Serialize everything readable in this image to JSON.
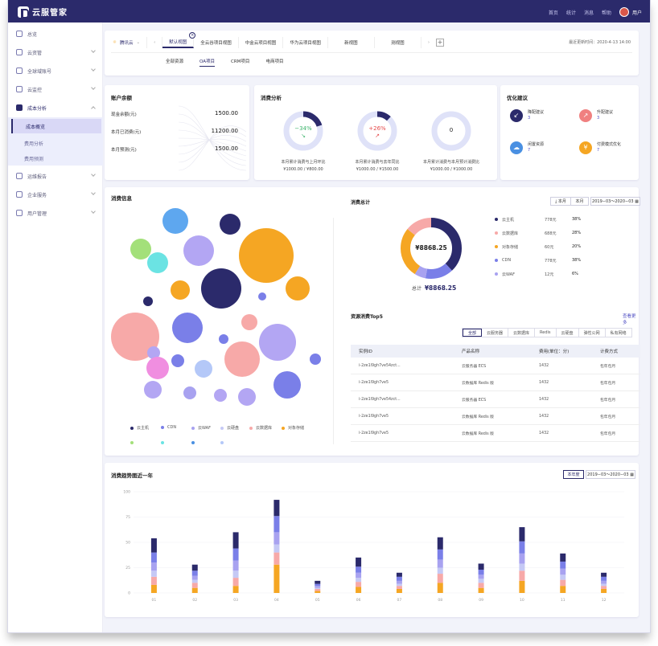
{
  "app": {
    "title": "云服管家",
    "nav": [
      "首页",
      "统计",
      "消息",
      "帮助"
    ],
    "user": "用户"
  },
  "sidebar": {
    "items": [
      {
        "label": "总览"
      },
      {
        "label": "云资管"
      },
      {
        "label": "全球域账号"
      },
      {
        "label": "云监控"
      },
      {
        "label": "成本分析"
      },
      {
        "label": "运维报告"
      },
      {
        "label": "企业服务"
      },
      {
        "label": "用户管理"
      }
    ],
    "sub": [
      "成本概览",
      "费用分析",
      "费用预测"
    ]
  },
  "tabs": {
    "cloud": "腾讯云",
    "items": [
      "默认视图",
      "全云谷项目视图",
      "中金云项目视图",
      "华为云项目视图",
      "新视图",
      "测视图"
    ],
    "updated": "最近更新时间：",
    "updated_value": "2020-4-13 14:00",
    "sub": [
      "全部资源",
      "OA项目",
      "CRM项目",
      "电商项目"
    ]
  },
  "balance": {
    "title": "账户余额",
    "rows": [
      {
        "label": "现金余额(元)",
        "value": "1500.00"
      },
      {
        "label": "本月已消费(元)",
        "value": "11200.00"
      },
      {
        "label": "本月预测(元)",
        "value": "1500.00"
      }
    ]
  },
  "consumption": {
    "title": "消费分析",
    "donuts": [
      {
        "pct": "−34%",
        "arrow": "↘",
        "cap": "本月累计消费与上月环比",
        "vals": "¥1000.00  /  ¥800.00",
        "fill": 0.2
      },
      {
        "pct": "+26%",
        "arrow": "↗",
        "cap": "本月累计消费与去年同比",
        "vals": "¥1000.00  /  ¥1500.00",
        "fill": 0.12
      },
      {
        "pct": "0",
        "arrow": "",
        "cap": "本月累计消费与本月预计消费比",
        "vals": "¥1000.00  /  ¥1000.00",
        "fill": 0
      }
    ]
  },
  "optimize": {
    "title": "优化建议",
    "items": [
      {
        "label": "降配建议",
        "count": "3",
        "color": "#2b2a6b",
        "icon": "arrow-down-left-icon"
      },
      {
        "label": "升配建议",
        "count": "3",
        "color": "#f08080",
        "icon": "arrow-up-right-icon"
      },
      {
        "label": "闲置资源",
        "count": "7",
        "color": "#4a90e2",
        "icon": "cloud-icon"
      },
      {
        "label": "付费模式优化",
        "count": "7",
        "color": "#f5a623",
        "icon": "yen-icon"
      }
    ]
  },
  "info": {
    "title": "消费信息",
    "legend": [
      "云主机",
      "CDN",
      "云WAF",
      "云硬盘",
      "云数据库",
      "对象存储"
    ],
    "legend_colors": [
      "#2b2a6b",
      "#7a7fe8",
      "#a8a2f0",
      "#c5c9f5",
      "#f7a9a8",
      "#f5a623"
    ],
    "legend_colors2": [
      "#a3e07a",
      "#6be3e3",
      "#4a90e2",
      "#b4c8f8"
    ]
  },
  "summary": {
    "title": "消费总计",
    "btn_month": "本月",
    "btn_export": "本月",
    "range": "2019−03～2020−03",
    "center": "¥8868.25",
    "total_label": "总计",
    "total_value": "¥8868.25",
    "rows": [
      {
        "name": "云主机",
        "amt": "778元",
        "pct": "38%",
        "color": "#2b2a6b"
      },
      {
        "name": "云数据库",
        "amt": "688元",
        "pct": "28%",
        "color": "#f7a9a8"
      },
      {
        "name": "对象存储",
        "amt": "60元",
        "pct": "20%",
        "color": "#f5a623"
      },
      {
        "name": "CDN",
        "amt": "778元",
        "pct": "38%",
        "color": "#7a7fe8"
      },
      {
        "name": "云WAF",
        "amt": "12元",
        "pct": "6%",
        "color": "#a8a2f0"
      }
    ]
  },
  "top5": {
    "title": "资源消费Top5",
    "more": "查看更多",
    "filters": [
      "全部",
      "云服务器",
      "云数据库",
      "Redis",
      "云硬盘",
      "弹性公网",
      "私有网络"
    ],
    "headers": [
      "实例ID",
      "产品名称",
      "费用(单位：分)",
      "计费方式"
    ],
    "rows": [
      [
        "i-2ze1l9gh7ve54zct...",
        "云服务器 ECS",
        "1432",
        "包年包月"
      ],
      [
        "i-2ze1l9gh7ve5",
        "云数据库 Redis 版",
        "1432",
        "包年包月"
      ],
      [
        "i-2ze1l9gh7ve54zct...",
        "云服务器 ECS",
        "1432",
        "包年包月"
      ],
      [
        "i-2ze1l9gh7ve5",
        "云数据库 Redis 版",
        "1432",
        "包年包月"
      ],
      [
        "i-2ze1l9gh7ve5",
        "云数据库 Redis 版",
        "1432",
        "包年包月"
      ]
    ]
  },
  "trend": {
    "title": "消费趋势图近一年",
    "btn": "本年度",
    "range": "2019−03～2020−03"
  },
  "chart_data": {
    "type": "bar",
    "title": "消费趋势图近一年",
    "ylim": [
      0,
      100
    ],
    "yticks": [
      "0",
      "25",
      "50",
      "75",
      "100"
    ],
    "categories": [
      "01",
      "02",
      "03",
      "04",
      "05",
      "06",
      "07",
      "08",
      "09",
      "10",
      "11",
      "12"
    ],
    "series": [
      {
        "color": "#f5a623",
        "values": [
          8,
          5,
          7,
          28,
          2,
          6,
          4,
          10,
          5,
          12,
          7,
          4
        ]
      },
      {
        "color": "#f7a9a8",
        "values": [
          8,
          5,
          8,
          12,
          2,
          5,
          3,
          9,
          5,
          10,
          6,
          3
        ]
      },
      {
        "color": "#c5c9f5",
        "values": [
          6,
          3,
          7,
          8,
          1,
          4,
          2,
          6,
          4,
          7,
          5,
          2
        ]
      },
      {
        "color": "#a8a2f0",
        "values": [
          8,
          4,
          10,
          12,
          2,
          5,
          3,
          8,
          4,
          10,
          6,
          3
        ]
      },
      {
        "color": "#7a7fe8",
        "values": [
          10,
          5,
          12,
          16,
          2,
          6,
          4,
          10,
          5,
          12,
          7,
          4
        ]
      },
      {
        "color": "#2b2a6b",
        "values": [
          14,
          6,
          16,
          16,
          3,
          9,
          4,
          12,
          6,
          14,
          8,
          4
        ]
      }
    ]
  }
}
